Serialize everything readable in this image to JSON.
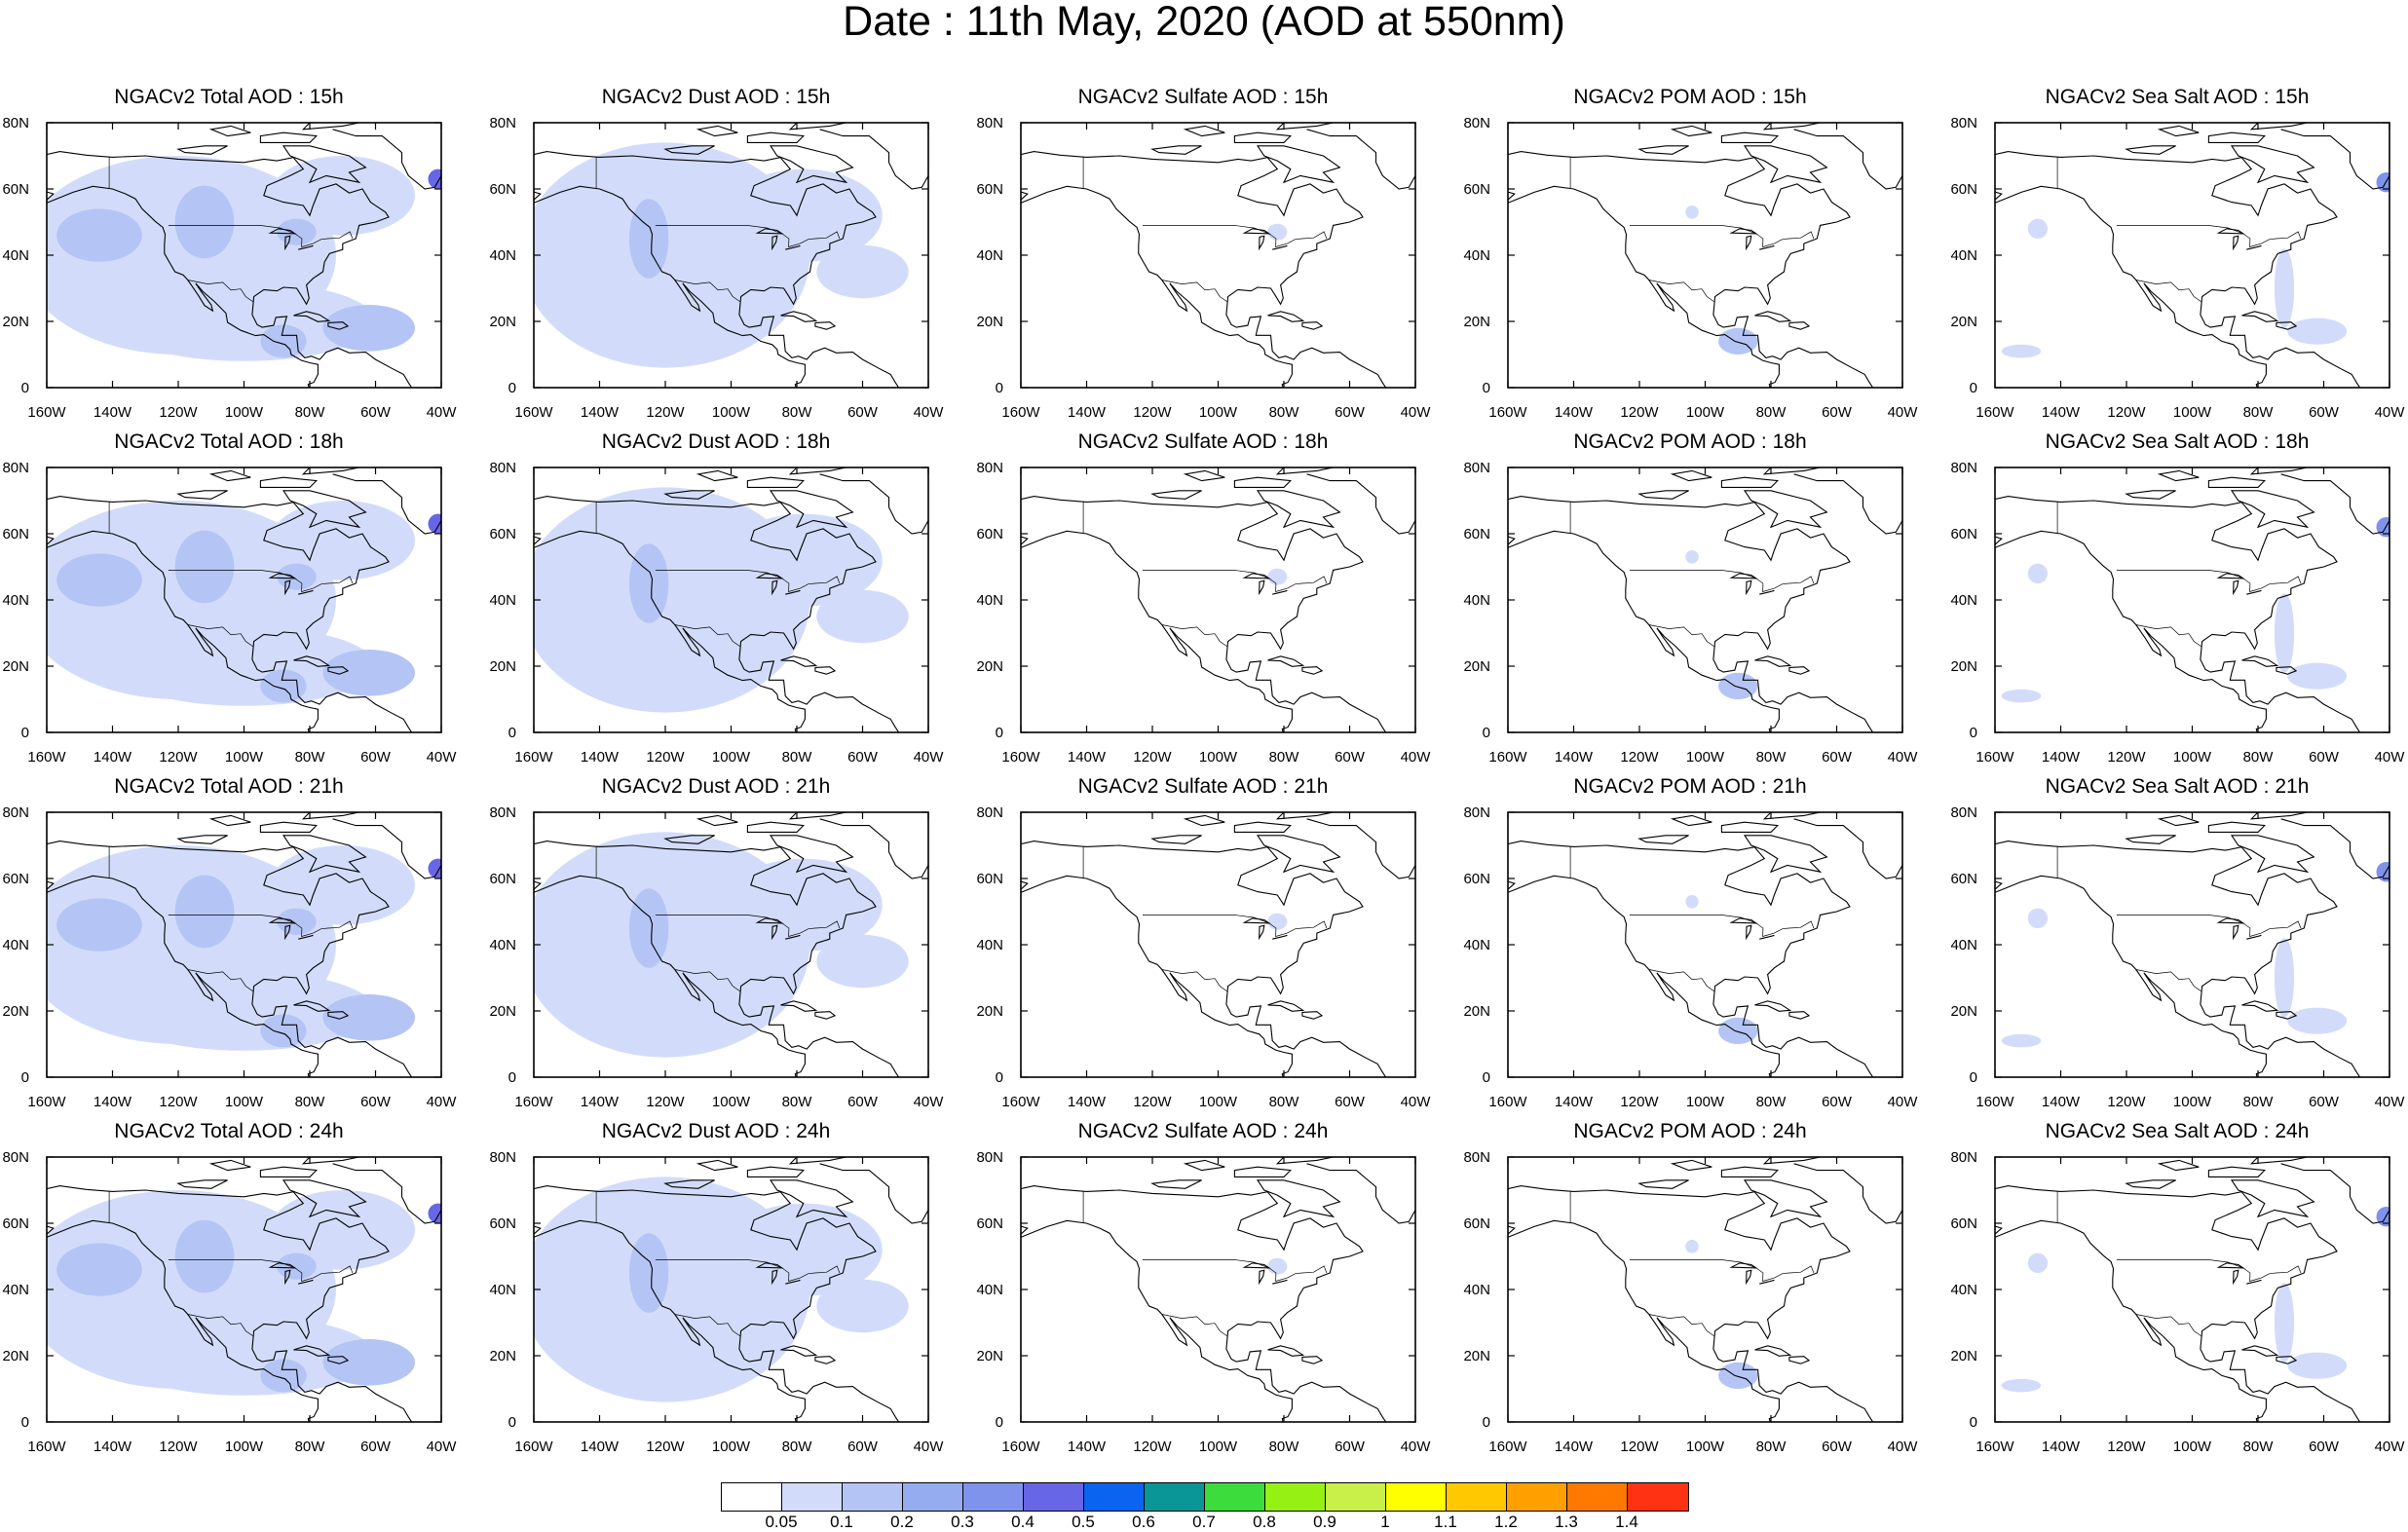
{
  "title": "Date : 11th May, 2020 (AOD at 550nm)",
  "x_ticks": [
    "160W",
    "140W",
    "120W",
    "100W",
    "80W",
    "60W",
    "40W"
  ],
  "y_ticks": [
    "80N",
    "60N",
    "40N",
    "20N",
    "0"
  ],
  "panels": [
    {
      "title": "NGACv2 Total AOD : 15h",
      "species": "total",
      "hour": 15
    },
    {
      "title": "NGACv2 Dust AOD : 15h",
      "species": "dust",
      "hour": 15
    },
    {
      "title": "NGACv2 Sulfate AOD : 15h",
      "species": "sulfate",
      "hour": 15
    },
    {
      "title": "NGACv2 POM AOD : 15h",
      "species": "pom",
      "hour": 15
    },
    {
      "title": "NGACv2 Sea Salt AOD : 15h",
      "species": "seasalt",
      "hour": 15
    },
    {
      "title": "NGACv2 Total AOD : 18h",
      "species": "total",
      "hour": 18
    },
    {
      "title": "NGACv2 Dust AOD : 18h",
      "species": "dust",
      "hour": 18
    },
    {
      "title": "NGACv2 Sulfate AOD : 18h",
      "species": "sulfate",
      "hour": 18
    },
    {
      "title": "NGACv2 POM AOD : 18h",
      "species": "pom",
      "hour": 18
    },
    {
      "title": "NGACv2 Sea Salt AOD : 18h",
      "species": "seasalt",
      "hour": 18
    },
    {
      "title": "NGACv2 Total AOD : 21h",
      "species": "total",
      "hour": 21
    },
    {
      "title": "NGACv2 Dust AOD : 21h",
      "species": "dust",
      "hour": 21
    },
    {
      "title": "NGACv2 Sulfate AOD : 21h",
      "species": "sulfate",
      "hour": 21
    },
    {
      "title": "NGACv2 POM AOD : 21h",
      "species": "pom",
      "hour": 21
    },
    {
      "title": "NGACv2 Sea Salt AOD : 21h",
      "species": "seasalt",
      "hour": 21
    },
    {
      "title": "NGACv2 Total AOD : 24h",
      "species": "total",
      "hour": 24
    },
    {
      "title": "NGACv2 Dust AOD : 24h",
      "species": "dust",
      "hour": 24
    },
    {
      "title": "NGACv2 Sulfate AOD : 24h",
      "species": "sulfate",
      "hour": 24
    },
    {
      "title": "NGACv2 POM AOD : 24h",
      "species": "pom",
      "hour": 24
    },
    {
      "title": "NGACv2 Sea Salt  AOD : 24h",
      "species": "seasalt",
      "hour": 24
    }
  ],
  "colorbar": {
    "colors": [
      "#ffffff",
      "#d2dcfa",
      "#b4c5f5",
      "#95acf0",
      "#7f93ec",
      "#6666e6",
      "#0a64f0",
      "#0a9696",
      "#3cdc3c",
      "#96f014",
      "#c8f048",
      "#ffff00",
      "#ffc800",
      "#ffa000",
      "#ff7800",
      "#ff3214"
    ],
    "labels": [
      "0.05",
      "0.1",
      "0.2",
      "0.3",
      "0.4",
      "0.5",
      "0.6",
      "0.7",
      "0.8",
      "0.9",
      "1",
      "1.1",
      "1.2",
      "1.3",
      "1.4"
    ]
  }
}
